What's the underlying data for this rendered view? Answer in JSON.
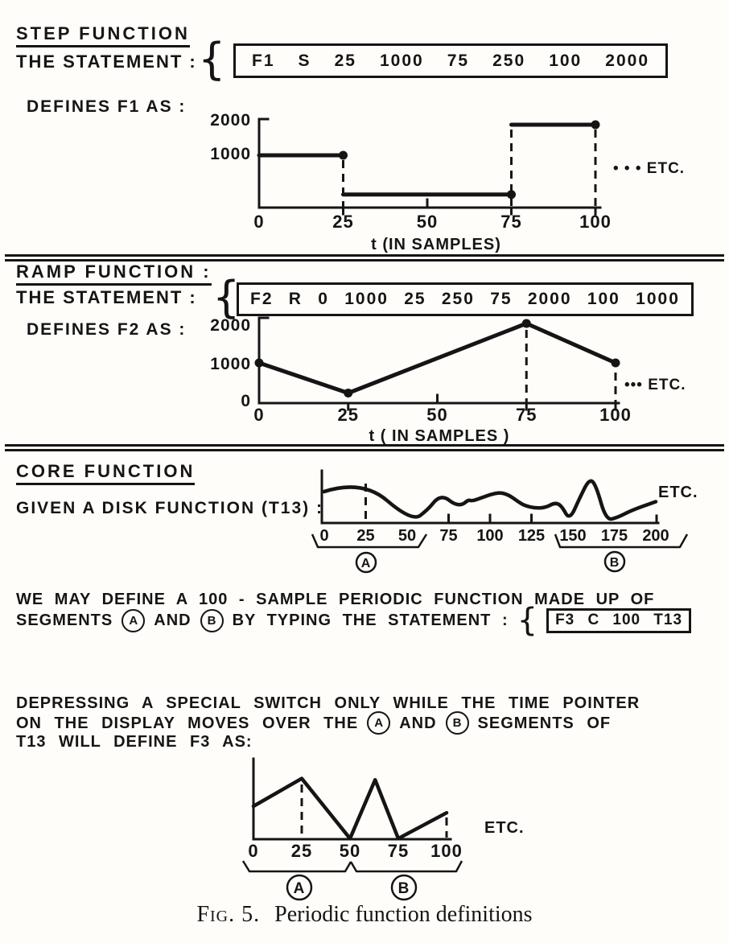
{
  "step_section": {
    "title": "STEP FUNCTION",
    "statement_label": "THE STATEMENT :",
    "brace": "{",
    "statement_tokens": [
      "F1",
      "S",
      "25",
      "1000",
      "75",
      "250",
      "100",
      "2000"
    ],
    "defines_label": "DEFINES F1 AS :"
  },
  "ramp_section": {
    "title": "RAMP FUNCTION :",
    "statement_label": "THE STATEMENT :",
    "brace": "{",
    "statement_tokens": [
      "F2",
      "R",
      "0",
      "1000",
      "25",
      "250",
      "75",
      "2000",
      "100",
      "1000"
    ],
    "defines_label": "DEFINES F2 AS :"
  },
  "core_section": {
    "title": "CORE FUNCTION",
    "given_label": "GIVEN A DISK FUNCTION (T13) :"
  },
  "paragraph1": {
    "line1": "WE MAY DEFINE A 100 - SAMPLE PERIODIC FUNCTION MADE UP OF",
    "line2_pre": "SEGMENTS",
    "circle_a": "A",
    "line2_mid": "AND",
    "circle_b": "B",
    "line2_post": "BY TYPING THE STATEMENT :",
    "brace": "{",
    "statement_tokens": [
      "F3",
      "C",
      "100",
      "T13"
    ]
  },
  "paragraph2": {
    "line1": "DEPRESSING A SPECIAL SWITCH ONLY WHILE THE TIME POINTER",
    "line2_pre": "ON THE DISPLAY MOVES OVER THE",
    "circle_a": "A",
    "line2_mid": "AND",
    "circle_b": "B",
    "line2_post": "SEGMENTS OF",
    "line3": "T13 WILL DEFINE F3 AS:"
  },
  "caption": {
    "fig": "Fig. 5.",
    "text": "Periodic function definitions"
  },
  "chart_data": [
    {
      "id": "f1",
      "type": "step",
      "title": "F1 step function",
      "x_ticks": [
        0,
        25,
        50,
        75,
        100
      ],
      "y_ticks": [
        1000,
        2000
      ],
      "x_range": [
        0,
        100
      ],
      "y_range": [
        0,
        2000
      ],
      "xlabel": "t (IN SAMPLES)",
      "etc": "• • • ETC.",
      "segments": [
        {
          "from": 0,
          "to": 25,
          "value": 1000
        },
        {
          "from": 25,
          "to": 75,
          "value": 250
        },
        {
          "from": 75,
          "to": 100,
          "value": 2000
        }
      ],
      "dots": [
        [
          25,
          1000
        ],
        [
          75,
          250
        ],
        [
          100,
          2000
        ]
      ],
      "dashed_x": [
        25,
        75,
        100
      ]
    },
    {
      "id": "f2",
      "type": "line",
      "title": "F2 ramp function",
      "x_ticks": [
        0,
        25,
        50,
        75,
        100
      ],
      "y_ticks": [
        0,
        1000,
        2000
      ],
      "x_range": [
        0,
        100
      ],
      "y_range": [
        0,
        2000
      ],
      "xlabel": "t ( IN SAMPLES )",
      "etc": "••• ETC.",
      "points": [
        [
          0,
          1000
        ],
        [
          25,
          250
        ],
        [
          75,
          2000
        ],
        [
          100,
          1000
        ]
      ],
      "dashed_x": [
        75,
        100
      ]
    },
    {
      "id": "t13",
      "type": "freehand",
      "title": "Disk function T13",
      "x_ticks": [
        0,
        25,
        50,
        75,
        100,
        125,
        150,
        175,
        200
      ],
      "x_range": [
        0,
        200
      ],
      "y_range_relative": [
        0,
        1
      ],
      "etc": "ETC.",
      "dashed_x": [
        25
      ],
      "curve": [
        [
          0,
          0.62
        ],
        [
          23,
          0.86
        ],
        [
          53,
          0.02
        ],
        [
          63,
          0.28
        ],
        [
          68,
          0.49
        ],
        [
          73,
          0.51
        ],
        [
          78,
          0.38
        ],
        [
          83,
          0.35
        ],
        [
          87,
          0.46
        ],
        [
          89,
          0.43
        ],
        [
          96,
          0.51
        ],
        [
          102,
          0.58
        ],
        [
          107,
          0.6
        ],
        [
          112,
          0.54
        ],
        [
          117,
          0.42
        ],
        [
          121,
          0.34
        ],
        [
          128,
          0.29
        ],
        [
          134,
          0.31
        ],
        [
          139,
          0.4
        ],
        [
          143,
          0.35
        ],
        [
          148,
          0.05
        ],
        [
          154,
          0.49
        ],
        [
          160,
          0.88
        ],
        [
          164,
          0.74
        ],
        [
          170,
          0.05
        ],
        [
          177,
          0.11
        ],
        [
          186,
          0.26
        ],
        [
          200,
          0.42
        ]
      ],
      "braces": [
        {
          "from": 0,
          "to": 50,
          "label": "A"
        },
        {
          "from": 150,
          "to": 200,
          "label": "B"
        }
      ]
    },
    {
      "id": "f3",
      "type": "freehand",
      "title": "F3 core function",
      "x_ticks": [
        0,
        25,
        50,
        75,
        100
      ],
      "x_range": [
        0,
        100
      ],
      "y_range_relative": [
        0,
        1
      ],
      "etc": "ETC.",
      "dashed_x": [
        25,
        100
      ],
      "curve": [
        [
          0,
          0.5
        ],
        [
          25,
          0.92
        ],
        [
          50,
          0.01
        ],
        [
          63,
          0.9
        ],
        [
          75,
          0.01
        ],
        [
          100,
          0.4
        ]
      ],
      "braces": [
        {
          "from": 0,
          "to": 50,
          "label": "A"
        },
        {
          "from": 50,
          "to": 100,
          "label": "B"
        }
      ]
    }
  ]
}
